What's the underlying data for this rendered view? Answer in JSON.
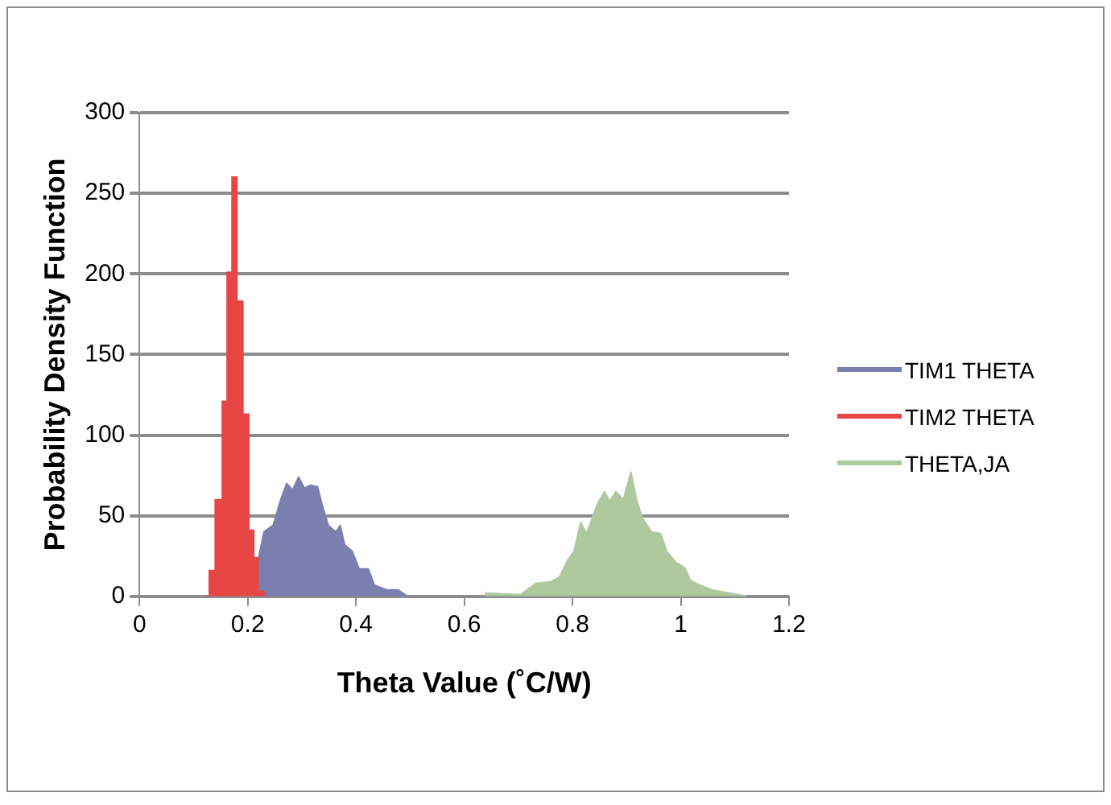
{
  "chart_data": {
    "type": "area",
    "xlabel": "Theta Value (˚C/W)",
    "ylabel": "Probability Density Function",
    "xlim": [
      0,
      1.2
    ],
    "xticks": [
      0,
      0.2,
      0.4,
      0.6,
      0.8,
      1,
      1.2
    ],
    "ylim": [
      0,
      300
    ],
    "yticks": [
      0,
      50,
      100,
      150,
      200,
      250,
      300
    ],
    "grid": "y",
    "legend": "right",
    "marker": "none",
    "series": [
      {
        "name": "TIM1 THETA",
        "color": "#7a7fb0",
        "x": [
          0.219,
          0.23,
          0.247,
          0.261,
          0.272,
          0.283,
          0.294,
          0.305,
          0.316,
          0.329,
          0.338,
          0.349,
          0.363,
          0.371,
          0.379,
          0.393,
          0.406,
          0.423,
          0.434,
          0.456,
          0.478,
          0.495
        ],
        "values": [
          22,
          40,
          44,
          60,
          70,
          66,
          74,
          67,
          69,
          68,
          56,
          44,
          40,
          44,
          32,
          28,
          17,
          17,
          7,
          4,
          4,
          0
        ]
      },
      {
        "name": "TIM2 THETA",
        "color": "#e84545",
        "x": [
          0.12,
          0.129,
          0.129,
          0.14,
          0.14,
          0.153,
          0.153,
          0.162,
          0.162,
          0.171,
          0.171,
          0.18,
          0.18,
          0.191,
          0.191,
          0.202,
          0.202,
          0.211,
          0.211,
          0.219,
          0.219,
          0.23,
          0.23
        ],
        "values": [
          0,
          0,
          16,
          16,
          60,
          60,
          121,
          121,
          201,
          201,
          260,
          260,
          183,
          183,
          113,
          113,
          41,
          41,
          24,
          24,
          3,
          3,
          0
        ]
      },
      {
        "name": "THETA,JA",
        "color": "#afc99f",
        "x": [
          0.638,
          0.704,
          0.732,
          0.759,
          0.776,
          0.792,
          0.803,
          0.815,
          0.826,
          0.836,
          0.847,
          0.859,
          0.869,
          0.88,
          0.894,
          0.908,
          0.919,
          0.93,
          0.946,
          0.963,
          0.974,
          0.991,
          1.007,
          1.018,
          1.035,
          1.057,
          1.09,
          1.123
        ],
        "values": [
          2,
          1,
          8,
          9,
          12,
          23,
          28,
          46,
          39,
          48,
          58,
          65,
          59,
          65,
          60,
          77,
          59,
          48,
          40,
          39,
          28,
          21,
          18,
          10,
          7,
          4,
          2,
          0
        ]
      }
    ]
  }
}
